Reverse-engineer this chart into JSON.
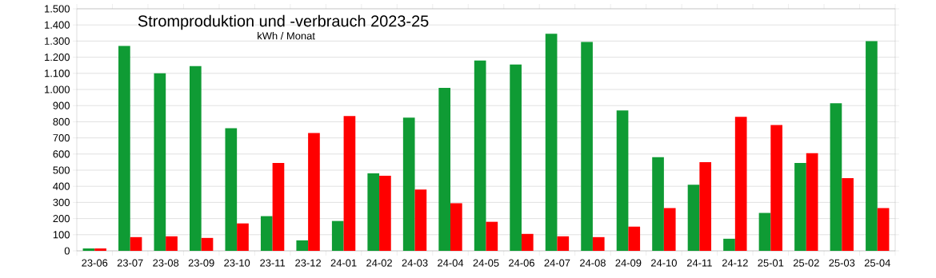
{
  "chart_data": {
    "type": "bar",
    "title": "Stromproduktion und -verbrauch 2023-25",
    "subtitle": "kWh / Monat",
    "categories": [
      "23-06",
      "23-07",
      "23-08",
      "23-09",
      "23-10",
      "23-11",
      "23-12",
      "24-01",
      "24-02",
      "24-03",
      "24-04",
      "24-05",
      "24-06",
      "24-07",
      "24-08",
      "24-09",
      "24-10",
      "24-11",
      "24-12",
      "25-01",
      "25-02",
      "25-03",
      "25-04"
    ],
    "series": [
      {
        "color": "#0f9b34",
        "values": [
          15,
          1270,
          1100,
          1145,
          760,
          215,
          65,
          185,
          480,
          825,
          1010,
          1180,
          1155,
          1345,
          1295,
          870,
          580,
          410,
          75,
          235,
          545,
          915,
          1300
        ]
      },
      {
        "color": "#ff0000",
        "values": [
          15,
          85,
          90,
          80,
          170,
          545,
          730,
          835,
          465,
          380,
          295,
          180,
          105,
          90,
          85,
          150,
          265,
          550,
          830,
          780,
          605,
          450,
          265
        ]
      }
    ],
    "ylim": [
      0,
      1500
    ],
    "yticks": [
      0,
      100,
      200,
      300,
      400,
      500,
      600,
      700,
      800,
      900,
      {
        "value": 1000,
        "label": "1.000"
      },
      {
        "value": 1100,
        "label": "1.100"
      },
      {
        "value": 1200,
        "label": "1.200"
      },
      {
        "value": 1300,
        "label": "1.300"
      },
      {
        "value": 1400,
        "label": "1.400"
      },
      {
        "value": 1500,
        "label": "1.500"
      }
    ],
    "grid": "y"
  }
}
